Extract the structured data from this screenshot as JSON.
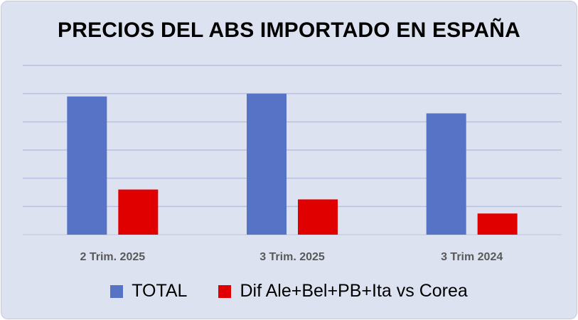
{
  "chart_data": {
    "type": "bar",
    "title": "PRECIOS DEL ABS IMPORTADO EN ESPAÑA",
    "categories": [
      "2 Trim. 2025",
      "3 Trim. 2025",
      "3 Trim 2024"
    ],
    "series": [
      {
        "name": "TOTAL",
        "color": "#5773c6",
        "values": [
          1.96,
          2.0,
          1.72
        ]
      },
      {
        "name": "Dif Ale+Bel+PB+Ita vs Corea",
        "color": "#e00000",
        "values": [
          0.64,
          0.5,
          0.3
        ]
      }
    ],
    "ylim": [
      0,
      2.4
    ],
    "grid": true,
    "y_tick_labels_shown": false,
    "legend_position": "bottom"
  }
}
